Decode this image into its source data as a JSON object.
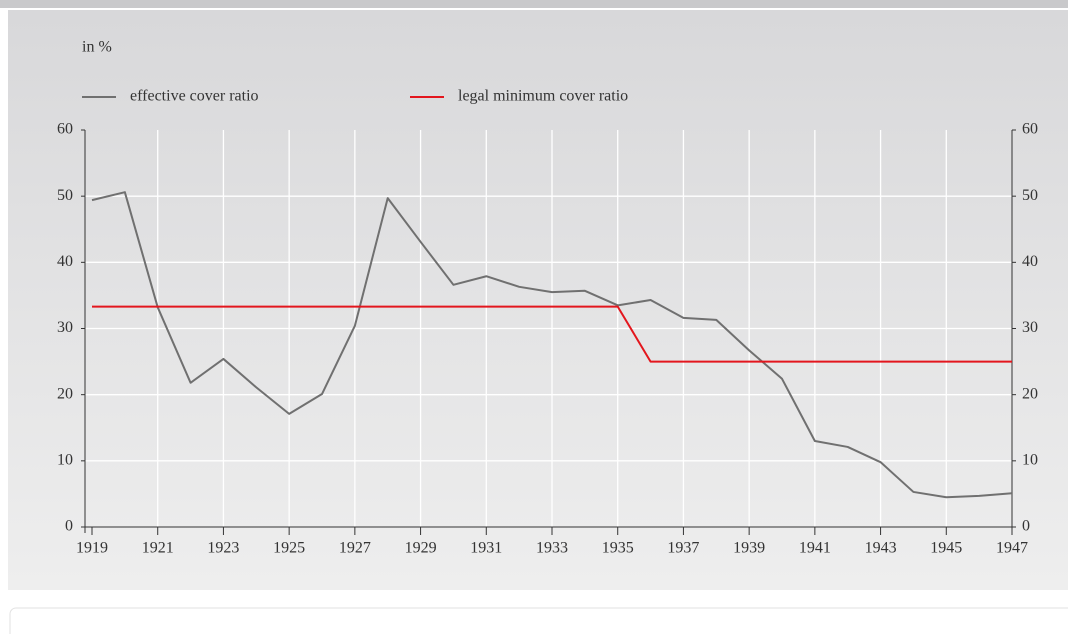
{
  "chart_data": {
    "type": "line",
    "y_unit_label": "in %",
    "x": [
      1919,
      1920,
      1921,
      1922,
      1923,
      1924,
      1925,
      1926,
      1927,
      1928,
      1929,
      1930,
      1931,
      1932,
      1933,
      1934,
      1935,
      1936,
      1937,
      1938,
      1939,
      1940,
      1941,
      1942,
      1943,
      1944,
      1945,
      1946,
      1947
    ],
    "series": [
      {
        "name": "effective cover ratio",
        "color": "#707070",
        "values": [
          49.4,
          50.6,
          33.2,
          21.8,
          25.4,
          21.1,
          17.1,
          20.1,
          30.4,
          49.7,
          43.1,
          36.6,
          37.9,
          36.3,
          35.5,
          35.7,
          33.5,
          34.3,
          31.6,
          31.3,
          26.7,
          22.4,
          13.0,
          12.1,
          9.8,
          5.3,
          4.5,
          4.7,
          5.1
        ]
      },
      {
        "name": "legal minimum cover ratio",
        "color": "#e3161d",
        "values": [
          33.3,
          33.3,
          33.3,
          33.3,
          33.3,
          33.3,
          33.3,
          33.3,
          33.3,
          33.3,
          33.3,
          33.3,
          33.3,
          33.3,
          33.3,
          33.3,
          33.3,
          25,
          25,
          25,
          25,
          25,
          25,
          25,
          25,
          25,
          25,
          25,
          25
        ]
      }
    ],
    "xlim": [
      1919,
      1947
    ],
    "xticks": [
      1919,
      1921,
      1923,
      1925,
      1927,
      1929,
      1931,
      1933,
      1935,
      1937,
      1939,
      1941,
      1943,
      1945,
      1947
    ],
    "ylim": [
      0,
      60
    ],
    "yticks": [
      0,
      10,
      20,
      30,
      40,
      50,
      60
    ],
    "y2lim": [
      0,
      60
    ],
    "y2ticks": [
      0,
      10,
      20,
      30,
      40,
      50,
      60
    ],
    "grid": true
  }
}
